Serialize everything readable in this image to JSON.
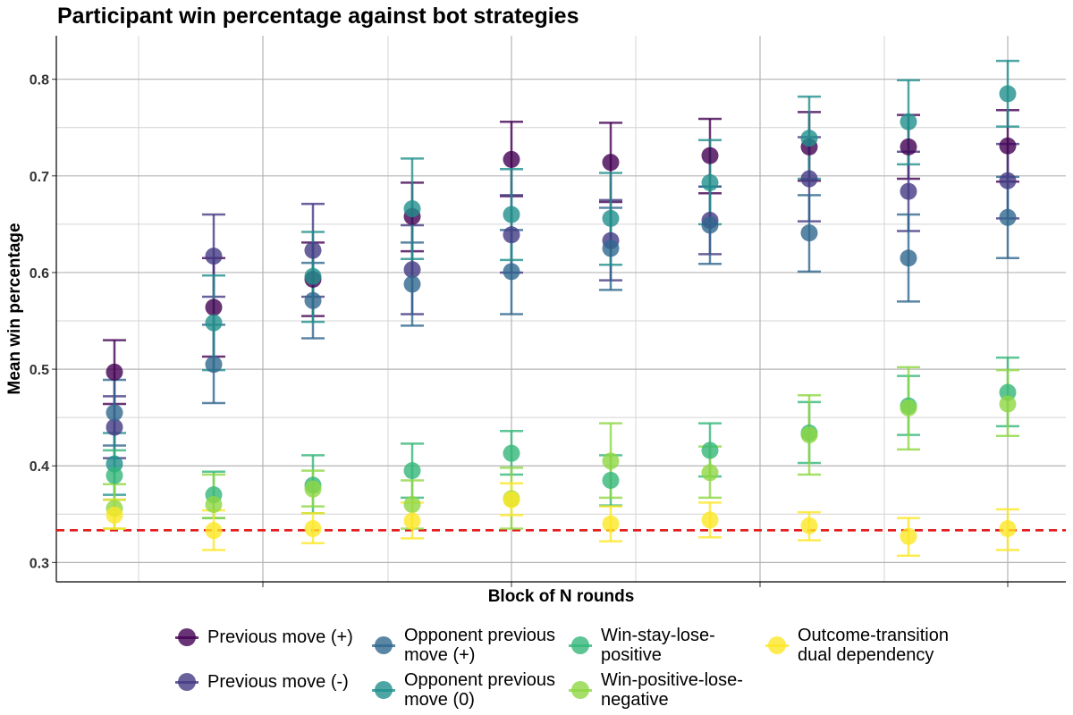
{
  "chart_data": {
    "type": "scatter",
    "title": "Participant win percentage against bot strategies",
    "xlabel": "Block of N rounds",
    "ylabel": "Mean win percentage",
    "ylim": [
      0.28,
      0.845
    ],
    "yticks": [
      "0.3",
      "0.4",
      "0.5",
      "0.6",
      "0.7",
      "0.8"
    ],
    "x": [
      1,
      2,
      3,
      4,
      5,
      6,
      7,
      8,
      9,
      10
    ],
    "grid": true,
    "legend_position": "bottom",
    "chance_line": {
      "value": 0.3333,
      "color": "#e41a1c",
      "style": "dashed"
    },
    "series": [
      {
        "name": "Previous move (+)",
        "color": "#440154",
        "values": [
          0.497,
          0.564,
          0.593,
          0.658,
          0.717,
          0.714,
          0.721,
          0.73,
          0.73,
          0.731
        ],
        "lower": [
          0.464,
          0.513,
          0.555,
          0.622,
          0.679,
          0.673,
          0.682,
          0.695,
          0.697,
          0.694
        ],
        "upper": [
          0.53,
          0.615,
          0.631,
          0.693,
          0.756,
          0.755,
          0.759,
          0.766,
          0.763,
          0.768
        ]
      },
      {
        "name": "Previous move (-)",
        "color": "#443983",
        "values": [
          0.44,
          0.617,
          0.623,
          0.603,
          0.639,
          0.633,
          0.654,
          0.697,
          0.684,
          0.695
        ],
        "lower": [
          0.408,
          0.575,
          0.575,
          0.557,
          0.6,
          0.592,
          0.619,
          0.653,
          0.643,
          0.656
        ],
        "upper": [
          0.472,
          0.66,
          0.671,
          0.649,
          0.68,
          0.675,
          0.689,
          0.74,
          0.725,
          0.733
        ]
      },
      {
        "name": "Opponent previous move (+)",
        "color": "#31688e",
        "values": [
          0.455,
          0.505,
          0.571,
          0.588,
          0.601,
          0.625,
          0.649,
          0.641,
          0.615,
          0.657
        ],
        "lower": [
          0.421,
          0.465,
          0.532,
          0.545,
          0.557,
          0.582,
          0.609,
          0.601,
          0.57,
          0.615
        ],
        "upper": [
          0.489,
          0.546,
          0.61,
          0.631,
          0.644,
          0.667,
          0.689,
          0.68,
          0.66,
          0.699
        ]
      },
      {
        "name": "Opponent previous move (0)",
        "color": "#21908c",
        "values": [
          0.402,
          0.548,
          0.596,
          0.666,
          0.66,
          0.656,
          0.693,
          0.739,
          0.756,
          0.785
        ],
        "lower": [
          0.37,
          0.499,
          0.549,
          0.614,
          0.613,
          0.608,
          0.65,
          0.697,
          0.712,
          0.751
        ],
        "upper": [
          0.434,
          0.597,
          0.642,
          0.718,
          0.707,
          0.703,
          0.737,
          0.782,
          0.799,
          0.819
        ]
      },
      {
        "name": "Win-stay-lose-positive",
        "color": "#35b779",
        "values": [
          0.39,
          0.37,
          0.38,
          0.395,
          0.413,
          0.385,
          0.416,
          0.434,
          0.462,
          0.476
        ],
        "lower": [
          0.365,
          0.346,
          0.351,
          0.367,
          0.391,
          0.359,
          0.389,
          0.403,
          0.432,
          0.441
        ],
        "upper": [
          0.416,
          0.394,
          0.411,
          0.423,
          0.436,
          0.411,
          0.444,
          0.466,
          0.493,
          0.512
        ]
      },
      {
        "name": "Win-positive-lose-negative",
        "color": "#8fd744",
        "values": [
          0.356,
          0.36,
          0.376,
          0.36,
          0.366,
          0.405,
          0.393,
          0.432,
          0.46,
          0.464
        ],
        "lower": [
          0.335,
          0.346,
          0.358,
          0.335,
          0.335,
          0.367,
          0.367,
          0.391,
          0.417,
          0.431
        ],
        "upper": [
          0.381,
          0.391,
          0.395,
          0.385,
          0.398,
          0.444,
          0.42,
          0.473,
          0.502,
          0.499
        ]
      },
      {
        "name": "Outcome-transition dual dependency",
        "color": "#fde725",
        "values": [
          0.349,
          0.333,
          0.335,
          0.343,
          0.365,
          0.34,
          0.344,
          0.338,
          0.327,
          0.335
        ],
        "lower": [
          0.335,
          0.313,
          0.32,
          0.325,
          0.349,
          0.322,
          0.326,
          0.323,
          0.307,
          0.313
        ],
        "upper": [
          0.365,
          0.354,
          0.351,
          0.362,
          0.382,
          0.358,
          0.362,
          0.352,
          0.346,
          0.355
        ]
      }
    ]
  },
  "legend": {
    "items": [
      {
        "label": "Previous move (+)",
        "color": "#440154"
      },
      {
        "label": "Previous move (-)",
        "color": "#443983"
      },
      {
        "label": "Opponent previous\nmove (+)",
        "color": "#31688e"
      },
      {
        "label": "Opponent previous\nmove (0)",
        "color": "#21908c"
      },
      {
        "label": "Win-stay-lose-\npositive",
        "color": "#35b779"
      },
      {
        "label": "Win-positive-lose-\nnegative",
        "color": "#8fd744"
      },
      {
        "label": "Outcome-transition\ndual dependency",
        "color": "#fde725"
      }
    ]
  }
}
